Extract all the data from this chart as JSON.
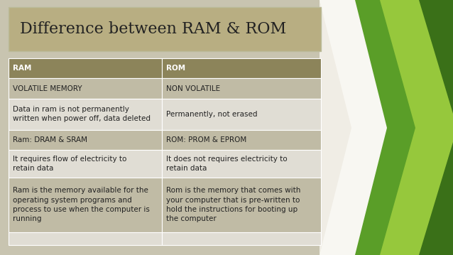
{
  "title": "Difference between RAM & ROM",
  "title_fontsize": 16,
  "title_font": "serif",
  "title_color": "#222222",
  "title_bg": "#b8ae82",
  "slide_bg": "#c8c4b0",
  "header_bg": "#8c845a",
  "header_text_color": "#ffffff",
  "row_bg_dark": "#c0bba5",
  "row_bg_light": "#e0ddd4",
  "col1_header": "RAM",
  "col2_header": "ROM",
  "rows": [
    [
      "VOLATILE MEMORY",
      "NON VOLATILE"
    ],
    [
      "Data in ram is not permanently\nwritten when power off, data deleted",
      "Permanently, not erased"
    ],
    [
      "Ram: DRAM & SRAM",
      "ROM: PROM & EPROM"
    ],
    [
      "It requires flow of electricity to\nretain data",
      "It does not requires electricity to\nretain data"
    ],
    [
      "Ram is the memory available for the\noperating system programs and\nprocess to use when the computer is\nrunning",
      "Rom is the memory that comes with\nyour computer that is pre-written to\nhold the instructions for booting up\nthe computer"
    ]
  ],
  "cell_fontsize": 7.5,
  "header_fontsize": 7.5,
  "font": "sans-serif",
  "white_area": "#f5f5f0",
  "light_green": "#96c83c",
  "mid_green": "#5a9e28",
  "dark_green": "#3a7018",
  "very_light_green": "#c8e0a0"
}
